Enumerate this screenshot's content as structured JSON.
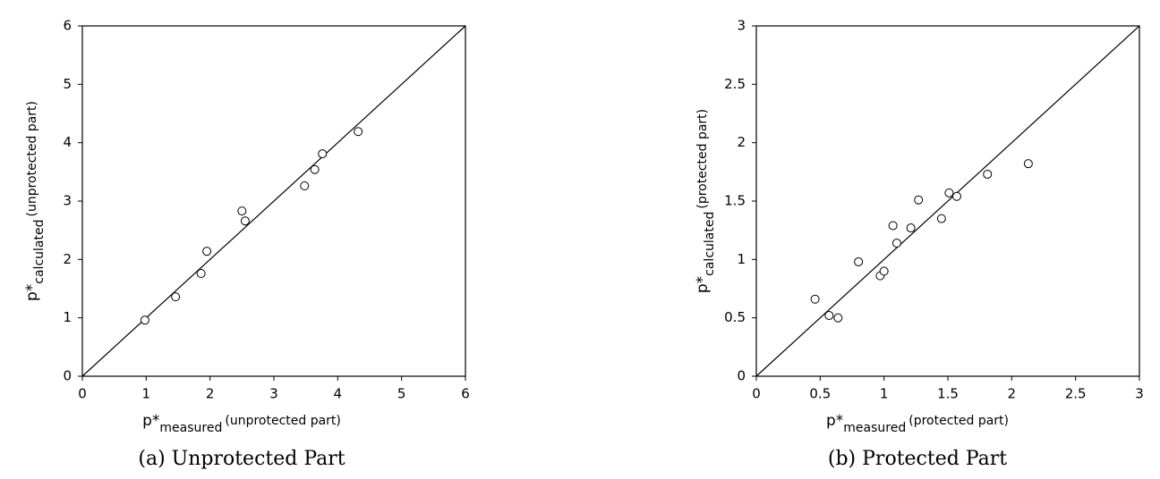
{
  "chart_data": [
    {
      "type": "scatter",
      "x_label": {
        "main": "p*",
        "sub": "measured",
        "suffix": "(unprotected part)"
      },
      "y_label": {
        "main": "p*",
        "sub": "calculated",
        "suffix": "(unprotected part)"
      },
      "caption": "(a) Unprotected Part",
      "x": [
        0.98,
        1.46,
        1.86,
        1.95,
        2.5,
        2.55,
        3.48,
        3.64,
        3.76,
        4.32
      ],
      "values": [
        0.96,
        1.36,
        1.76,
        2.14,
        2.83,
        2.66,
        3.26,
        3.54,
        3.81,
        4.19
      ],
      "color": "#000000",
      "xlim": [
        0,
        6
      ],
      "ylim": [
        0,
        6
      ],
      "xticks": [
        0,
        1,
        2,
        3,
        4,
        5,
        6
      ],
      "yticks": [
        0,
        1,
        2,
        3,
        4,
        5,
        6
      ],
      "diagonal": true
    },
    {
      "type": "scatter",
      "x_label": {
        "main": "p*",
        "sub": "measured",
        "suffix": "(protected part)"
      },
      "y_label": {
        "main": "p*",
        "sub": "calculated",
        "suffix": "(protected part)"
      },
      "caption": "(b) Protected Part",
      "x": [
        0.46,
        0.57,
        0.64,
        0.8,
        0.97,
        1.0,
        1.07,
        1.1,
        1.21,
        1.27,
        1.45,
        1.51,
        1.57,
        1.81,
        2.13
      ],
      "values": [
        0.66,
        0.52,
        0.5,
        0.98,
        0.86,
        0.9,
        1.29,
        1.14,
        1.27,
        1.51,
        1.35,
        1.57,
        1.54,
        1.73,
        1.82
      ],
      "color": "#000000",
      "xlim": [
        0,
        3
      ],
      "ylim": [
        0,
        3
      ],
      "xticks": [
        0,
        0.5,
        1,
        1.5,
        2,
        2.5,
        3
      ],
      "yticks": [
        0,
        0.5,
        1,
        1.5,
        2,
        2.5,
        3
      ],
      "diagonal": true
    }
  ]
}
